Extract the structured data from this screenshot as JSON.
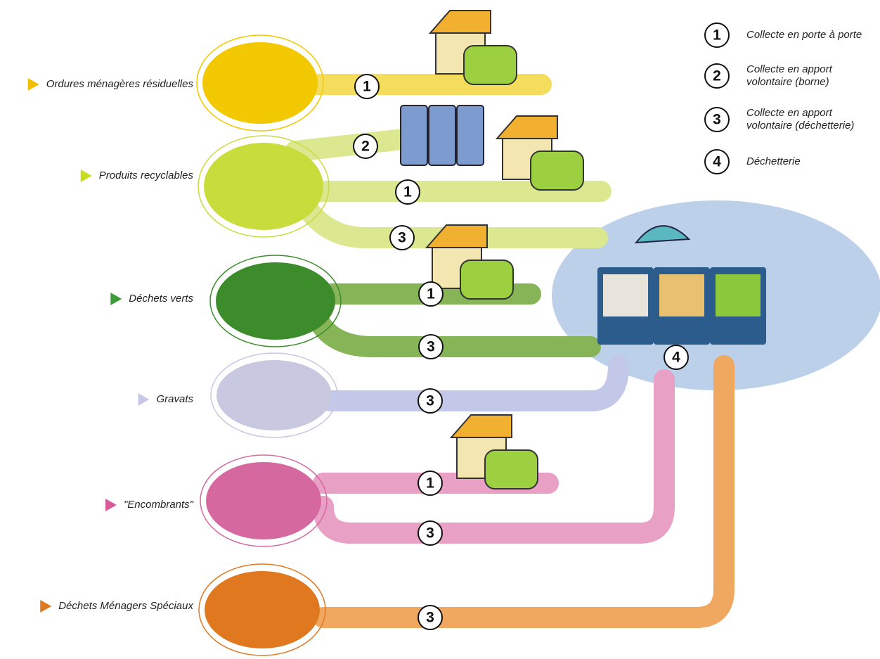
{
  "categories": [
    {
      "label": "Ordures ménagères résiduelles",
      "routes": [
        "1"
      ]
    },
    {
      "label": "Produits recyclables",
      "routes": [
        "2",
        "1",
        "3"
      ]
    },
    {
      "label": "Déchets verts",
      "routes": [
        "1",
        "3"
      ]
    },
    {
      "label": "Gravats",
      "routes": [
        "3"
      ]
    },
    {
      "label": "\"Encombrants\"",
      "routes": [
        "1",
        "3"
      ]
    },
    {
      "label": "Déchets Ménagers Spéciaux",
      "routes": [
        "3"
      ]
    }
  ],
  "decheterie_badge": "4",
  "legend": [
    {
      "number": "1",
      "lines": [
        "Collecte en porte à porte"
      ]
    },
    {
      "number": "2",
      "lines": [
        "Collecte en apport",
        "volontaire (borne)"
      ]
    },
    {
      "number": "3",
      "lines": [
        "Collecte en apport",
        "volontaire (déchetterie)"
      ]
    },
    {
      "number": "4",
      "lines": [
        "Déchetterie"
      ]
    }
  ]
}
